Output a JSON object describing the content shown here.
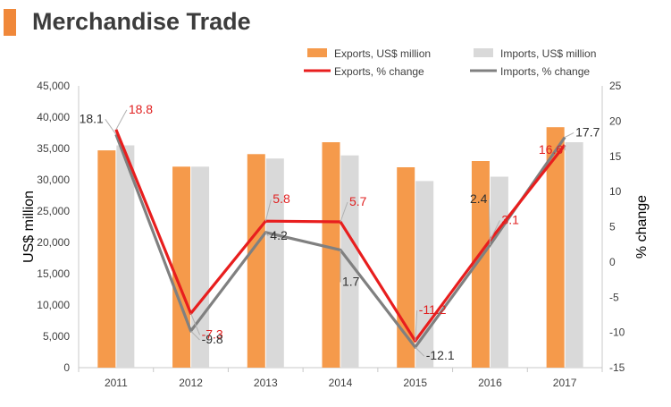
{
  "header": {
    "title": "Merchandise Trade",
    "accent_color": "#f0883a"
  },
  "colors": {
    "exports_bar": "#f59a4b",
    "imports_bar": "#d9d9d9",
    "exports_line": "#e81e1e",
    "imports_line": "#808080",
    "axis_text": "#404040",
    "exports_label": "#e02020",
    "imports_label": "#303030"
  },
  "chart_data": {
    "type": "bar",
    "combo": "bar+line",
    "categories": [
      "2011",
      "2012",
      "2013",
      "2014",
      "2015",
      "2016",
      "2017"
    ],
    "ylabel": "US$ million",
    "y2label": "% change",
    "ylim": [
      0,
      45000
    ],
    "y2lim": [
      -15,
      25
    ],
    "yticks": [
      "0",
      "5,000",
      "10,000",
      "15,000",
      "20,000",
      "25,000",
      "30,000",
      "35,000",
      "40,000",
      "45,000"
    ],
    "y2ticks": [
      "-15",
      "-10",
      "-5",
      "0",
      "5",
      "10",
      "15",
      "20",
      "25"
    ],
    "legend_position": "top",
    "series": [
      {
        "name": "Exports, US$ million",
        "kind": "bar",
        "values": [
          34700,
          32100,
          34100,
          36000,
          32000,
          33000,
          38400
        ]
      },
      {
        "name": "Imports, US$ million",
        "kind": "bar",
        "values": [
          35500,
          32100,
          33400,
          33900,
          29800,
          30500,
          36000
        ]
      },
      {
        "name": "Exports, % change",
        "kind": "line",
        "axis": "secondary",
        "values": [
          18.8,
          -7.3,
          5.8,
          5.7,
          -11.2,
          3.1,
          16.6
        ],
        "labels": [
          "18.8",
          "-7.3",
          "5.8",
          "5.7",
          "-11.2",
          "3.1",
          "16.6"
        ]
      },
      {
        "name": "Imports, % change",
        "kind": "line",
        "axis": "secondary",
        "values": [
          18.1,
          -9.8,
          4.2,
          1.7,
          -12.1,
          2.4,
          17.7
        ],
        "labels": [
          "18.1",
          "-9.8",
          "4.2",
          "1.7",
          "-12.1",
          "2.4",
          "17.7"
        ]
      }
    ]
  }
}
